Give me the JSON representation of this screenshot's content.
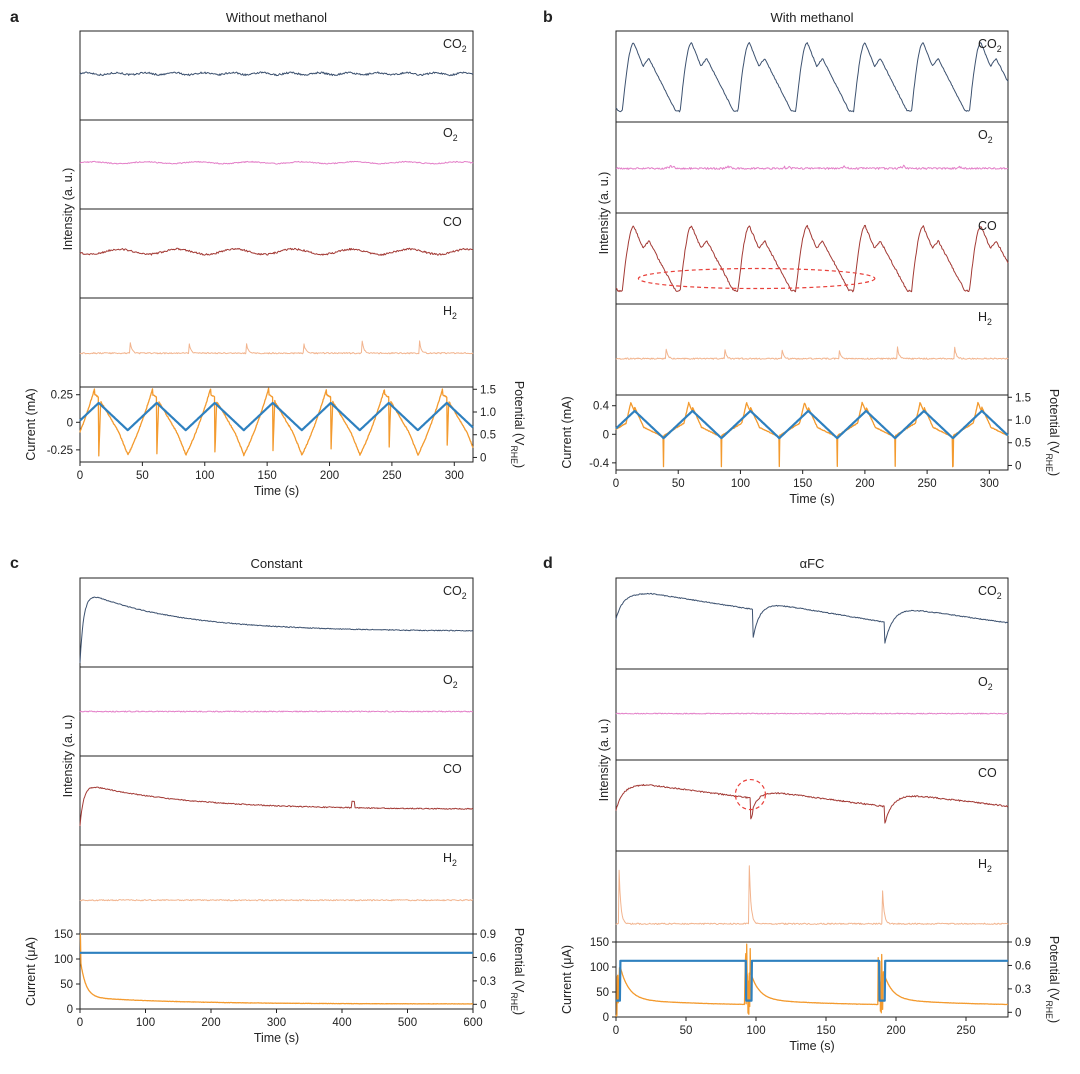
{
  "panels": [
    {
      "label": "a",
      "title": "Without methanol",
      "ylabel_intensity": "Intensity (a. u.)",
      "gases": [
        {
          "name": "CO",
          "sub": "2",
          "color": "#3d5270"
        },
        {
          "name": "O",
          "sub": "2",
          "color": "#e37fc8"
        },
        {
          "name": "CO",
          "sub": "",
          "color": "#a33a35"
        },
        {
          "name": "H",
          "sub": "2",
          "color": "#f2b48e"
        }
      ],
      "current_label": "Current (mA)",
      "current_ticks": [
        "0.25",
        "0",
        "-0.25"
      ],
      "current_tick_values": [
        0.25,
        0,
        -0.25
      ],
      "current_range": [
        -0.36,
        0.32
      ],
      "potential_label": "Potential (V",
      "potential_sub": "RHE",
      "potential_ticks": [
        "1.5",
        "1.0",
        "0.5",
        "0"
      ],
      "potential_tick_values": [
        1.5,
        1.0,
        0.5,
        0
      ],
      "potential_range": [
        -0.1,
        1.55
      ],
      "xlabel": "Time (s)",
      "xticks": [
        "0",
        "50",
        "100",
        "150",
        "200",
        "250",
        "300"
      ],
      "xtick_values": [
        0,
        50,
        100,
        150,
        200,
        250,
        300
      ],
      "xrange": [
        0,
        315
      ]
    },
    {
      "label": "b",
      "title": "With methanol",
      "ylabel_intensity": "Intensity (a. u.)",
      "gases": [
        {
          "name": "CO",
          "sub": "2",
          "color": "#3d5270"
        },
        {
          "name": "O",
          "sub": "2",
          "color": "#e37fc8"
        },
        {
          "name": "CO",
          "sub": "",
          "color": "#a33a35"
        },
        {
          "name": "H",
          "sub": "2",
          "color": "#f2b48e"
        }
      ],
      "current_label": "Current (mA)",
      "current_ticks": [
        "0.4",
        "0",
        "-0.4"
      ],
      "current_tick_values": [
        0.4,
        0,
        -0.4
      ],
      "current_range": [
        -0.5,
        0.55
      ],
      "potential_label": "Potential (V",
      "potential_sub": "RHE",
      "potential_ticks": [
        "1.5",
        "1.0",
        "0.5",
        "0"
      ],
      "potential_tick_values": [
        1.5,
        1.0,
        0.5,
        0
      ],
      "potential_range": [
        -0.1,
        1.55
      ],
      "xlabel": "Time (s)",
      "xticks": [
        "0",
        "50",
        "100",
        "150",
        "200",
        "250",
        "300"
      ],
      "xtick_values": [
        0,
        50,
        100,
        150,
        200,
        250,
        300
      ],
      "xrange": [
        0,
        315
      ]
    },
    {
      "label": "c",
      "title": "Constant",
      "ylabel_intensity": "Intensity (a. u.)",
      "gases": [
        {
          "name": "CO",
          "sub": "2",
          "color": "#3d5270"
        },
        {
          "name": "O",
          "sub": "2",
          "color": "#e37fc8"
        },
        {
          "name": "CO",
          "sub": "",
          "color": "#a33a35"
        },
        {
          "name": "H",
          "sub": "2",
          "color": "#f2b48e"
        }
      ],
      "current_label": "Current (μA)",
      "current_ticks": [
        "150",
        "100",
        "50",
        "0"
      ],
      "current_tick_values": [
        150,
        100,
        50,
        0
      ],
      "current_range": [
        0,
        150
      ],
      "potential_label": "Potential (V",
      "potential_sub": "RHE",
      "potential_ticks": [
        "0.9",
        "0.6",
        "0.3",
        "0"
      ],
      "potential_tick_values": [
        0.9,
        0.6,
        0.3,
        0
      ],
      "potential_range": [
        -0.06,
        0.9
      ],
      "xlabel": "Time (s)",
      "xticks": [
        "0",
        "100",
        "200",
        "300",
        "400",
        "500",
        "600"
      ],
      "xtick_values": [
        0,
        100,
        200,
        300,
        400,
        500,
        600
      ],
      "xrange": [
        0,
        600
      ]
    },
    {
      "label": "d",
      "title": "αFC",
      "ylabel_intensity": "Intensity (a. u.)",
      "gases": [
        {
          "name": "CO",
          "sub": "2",
          "color": "#3d5270"
        },
        {
          "name": "O",
          "sub": "2",
          "color": "#e37fc8"
        },
        {
          "name": "CO",
          "sub": "",
          "color": "#a33a35"
        },
        {
          "name": "H",
          "sub": "2",
          "color": "#f2b48e"
        }
      ],
      "current_label": "Current (μA)",
      "current_ticks": [
        "150",
        "100",
        "50",
        "0"
      ],
      "current_tick_values": [
        150,
        100,
        50,
        0
      ],
      "current_range": [
        0,
        150
      ],
      "potential_label": "Potential (V",
      "potential_sub": "RHE",
      "potential_ticks": [
        "0.9",
        "0.6",
        "0.3",
        "0"
      ],
      "potential_tick_values": [
        0.9,
        0.6,
        0.3,
        0
      ],
      "potential_range": [
        -0.06,
        0.9
      ],
      "xlabel": "Time (s)",
      "xticks": [
        "0",
        "50",
        "100",
        "150",
        "200",
        "250"
      ],
      "xtick_values": [
        0,
        50,
        100,
        150,
        200,
        250
      ],
      "xrange": [
        0,
        280
      ]
    }
  ],
  "colors": {
    "current": "#f39a2e",
    "potential": "#2e80bf",
    "annotation": "#e8403a",
    "axis": "#222222"
  },
  "chart_data": [
    {
      "type": "line",
      "title": "Without methanol",
      "xlabel": "Time (s)",
      "xlim": [
        0,
        315
      ],
      "series": [
        {
          "name": "CO2",
          "shape": "flat with small ripple"
        },
        {
          "name": "O2",
          "shape": "flat"
        },
        {
          "name": "CO",
          "shape": "flat with ripple at cycle rate"
        },
        {
          "name": "H2",
          "shape": "flat with spikes",
          "spike_times": [
            40,
            87,
            133,
            179,
            226,
            272
          ]
        },
        {
          "name": "Current (mA)",
          "ylim": [
            -0.36,
            0.32
          ],
          "period_s": 46.5
        },
        {
          "name": "Potential (V RHE)",
          "waveform": "triangle",
          "min": 0.0,
          "max": 1.2,
          "period_s": 46.5,
          "first_max_s": 15
        }
      ]
    },
    {
      "type": "line",
      "title": "With methanol",
      "xlabel": "Time (s)",
      "xlim": [
        0,
        315
      ],
      "series": [
        {
          "name": "CO2",
          "shape": "large periodic oscillation",
          "period_s": 46.5
        },
        {
          "name": "O2",
          "shape": "flat with noise"
        },
        {
          "name": "CO",
          "shape": "large periodic oscillation",
          "period_s": 46.5,
          "annotation": "dashed ellipse around minima 20-210 s"
        },
        {
          "name": "H2",
          "shape": "flat with spikes",
          "spike_times": [
            40,
            87,
            133,
            179,
            226,
            272
          ]
        },
        {
          "name": "Current (mA)",
          "ylim": [
            -0.5,
            0.55
          ],
          "period_s": 46.5
        },
        {
          "name": "Potential (V RHE)",
          "waveform": "triangle",
          "min": 0.0,
          "max": 1.2,
          "period_s": 46.5
        }
      ]
    },
    {
      "type": "line",
      "title": "Constant",
      "xlabel": "Time (s)",
      "xlim": [
        0,
        600
      ],
      "series": [
        {
          "name": "CO2",
          "shape": "fast rise then slow decay",
          "peak_s": 25
        },
        {
          "name": "O2",
          "shape": "flat"
        },
        {
          "name": "CO",
          "shape": "fast rise then slow decay",
          "spike_s": 415
        },
        {
          "name": "H2",
          "shape": "flat"
        },
        {
          "name": "Current (uA)",
          "start": 150,
          "at_50s": 25,
          "end": 10
        },
        {
          "name": "Potential (V RHE)",
          "value": 0.66
        }
      ]
    },
    {
      "type": "line",
      "title": "αFC",
      "xlabel": "Time (s)",
      "xlim": [
        0,
        280
      ],
      "series": [
        {
          "name": "CO2",
          "shape": "decay with dips at refresh pulses",
          "dip_times": [
            98,
            192
          ]
        },
        {
          "name": "O2",
          "shape": "flat"
        },
        {
          "name": "CO",
          "shape": "decay with dips at refresh pulses",
          "dip_times": [
            98,
            192
          ],
          "annotation": "dashed circle near 95 s"
        },
        {
          "name": "H2",
          "shape": "flat with spikes",
          "spike_times": [
            2,
            95,
            190
          ]
        },
        {
          "name": "Current (uA)",
          "shape": "decay after each pulse",
          "pulse_times": [
            3,
            95,
            190
          ]
        },
        {
          "name": "Potential (V RHE)",
          "value": 0.66,
          "pulse_times": [
            93,
            188
          ],
          "pulse_low": 0.15
        }
      ]
    }
  ]
}
